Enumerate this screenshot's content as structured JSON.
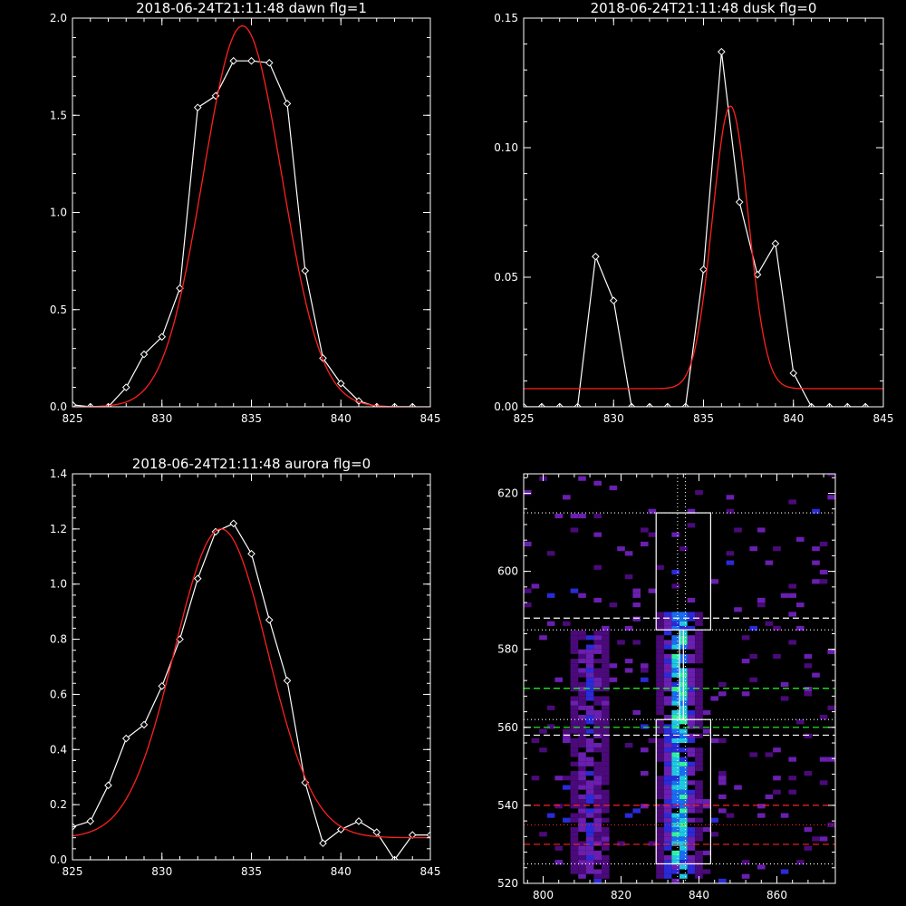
{
  "chart_data": [
    {
      "type": "line",
      "title": "2018-06-24T21:11:48 dawn flg=1",
      "xlim": [
        825,
        845
      ],
      "ylim": [
        0,
        2.0
      ],
      "xticks": [
        "825",
        "830",
        "835",
        "840",
        "845"
      ],
      "yticks": [
        "0.0",
        "0.5",
        "1.0",
        "1.5",
        "2.0"
      ],
      "series": [
        {
          "color": "#ffffff",
          "markers": "diamond",
          "x": [
            825,
            826,
            827,
            828,
            829,
            830,
            831,
            832,
            833,
            834,
            835,
            836,
            837,
            838,
            839,
            840,
            841,
            842,
            843,
            844
          ],
          "y": [
            0.01,
            0.0,
            0.0,
            0.1,
            0.27,
            0.36,
            0.61,
            1.54,
            1.6,
            1.78,
            1.78,
            1.77,
            1.56,
            0.7,
            0.25,
            0.12,
            0.03,
            0.0,
            0.0,
            0.0
          ]
        },
        {
          "color": "#ff2020",
          "kind": "gaussian_fit",
          "amp": 1.96,
          "center": 834.5,
          "sigma": 2.2,
          "offset": 0.0
        }
      ]
    },
    {
      "type": "line",
      "title": "2018-06-24T21:11:48 dusk flg=0",
      "xlim": [
        825,
        845
      ],
      "ylim": [
        0,
        0.15
      ],
      "xticks": [
        "825",
        "830",
        "835",
        "840",
        "845"
      ],
      "yticks": [
        "0.00",
        "0.05",
        "0.10",
        "0.15"
      ],
      "series": [
        {
          "color": "#ffffff",
          "markers": "diamond",
          "x": [
            825,
            826,
            827,
            828,
            829,
            830,
            831,
            832,
            833,
            834,
            835,
            836,
            837,
            838,
            839,
            840,
            841,
            842,
            843,
            844
          ],
          "y": [
            0.0,
            0.0,
            0.0,
            0.0,
            0.058,
            0.041,
            0.0,
            0.0,
            0.0,
            0.0,
            0.053,
            0.137,
            0.079,
            0.051,
            0.063,
            0.013,
            0.0,
            0.0,
            0.0,
            0.0
          ]
        },
        {
          "color": "#ff2020",
          "kind": "gaussian_fit",
          "amp": 0.109,
          "center": 836.5,
          "sigma": 1.0,
          "offset": 0.007
        }
      ]
    },
    {
      "type": "line",
      "title": "2018-06-24T21:11:48 aurora flg=0",
      "xlim": [
        825,
        845
      ],
      "ylim": [
        0,
        1.4
      ],
      "xticks": [
        "825",
        "830",
        "835",
        "840",
        "845"
      ],
      "yticks": [
        "0.0",
        "0.2",
        "0.4",
        "0.6",
        "0.8",
        "1.0",
        "1.2",
        "1.4"
      ],
      "series": [
        {
          "color": "#ffffff",
          "markers": "diamond",
          "x": [
            825,
            826,
            827,
            828,
            829,
            830,
            831,
            832,
            833,
            834,
            835,
            836,
            837,
            838,
            839,
            840,
            841,
            842,
            843,
            844,
            845
          ],
          "y": [
            0.12,
            0.14,
            0.27,
            0.44,
            0.49,
            0.63,
            0.8,
            1.02,
            1.19,
            1.22,
            1.11,
            0.87,
            0.65,
            0.28,
            0.06,
            0.11,
            0.14,
            0.1,
            0.0,
            0.09,
            0.09
          ]
        },
        {
          "color": "#ff2020",
          "kind": "gaussian_fit",
          "amp": 1.12,
          "center": 833.3,
          "sigma": 2.6,
          "offset": 0.08
        }
      ]
    },
    {
      "type": "heatmap",
      "title": "",
      "xlim": [
        795,
        875
      ],
      "ylim": [
        520,
        625
      ],
      "xticks": [
        "800",
        "820",
        "840",
        "860"
      ],
      "yticks": [
        "520",
        "540",
        "560",
        "580",
        "600",
        "620"
      ],
      "emission_columns": [
        {
          "x_center": 812,
          "width": 6,
          "y_range": [
            521,
            585
          ],
          "strength": 0.55
        },
        {
          "x_center": 835,
          "width": 8,
          "y_range": [
            521,
            590
          ],
          "strength": 1.0
        }
      ],
      "boxes": [
        {
          "x": [
            829,
            843
          ],
          "y": [
            525,
            562
          ]
        },
        {
          "x": [
            829,
            843
          ],
          "y": [
            585,
            615
          ]
        },
        {
          "x": [
            835,
            836
          ],
          "y": [
            562,
            585
          ]
        }
      ],
      "horizontal_lines": [
        {
          "y": 615,
          "color": "#ffffff",
          "style": "dotted"
        },
        {
          "y": 588,
          "color": "#ffffff",
          "style": "dashed"
        },
        {
          "y": 585,
          "color": "#ffffff",
          "style": "dotted"
        },
        {
          "y": 570,
          "color": "#22ff22",
          "style": "dashed"
        },
        {
          "y": 562,
          "color": "#ffffff",
          "style": "dotted"
        },
        {
          "y": 560,
          "color": "#22ff22",
          "style": "dashed"
        },
        {
          "y": 558,
          "color": "#ffffff",
          "style": "dashed"
        },
        {
          "y": 540,
          "color": "#ff2020",
          "style": "dashed"
        },
        {
          "y": 535,
          "color": "#ff2020",
          "style": "dotted"
        },
        {
          "y": 530,
          "color": "#ff2020",
          "style": "dashed"
        },
        {
          "y": 525,
          "color": "#ffffff",
          "style": "dotted"
        }
      ],
      "vertical_lines": [
        {
          "x": 834.5,
          "color": "#ffffff",
          "style": "dotted"
        },
        {
          "x": 836.5,
          "color": "#ffffff",
          "style": "dotted"
        }
      ]
    }
  ]
}
